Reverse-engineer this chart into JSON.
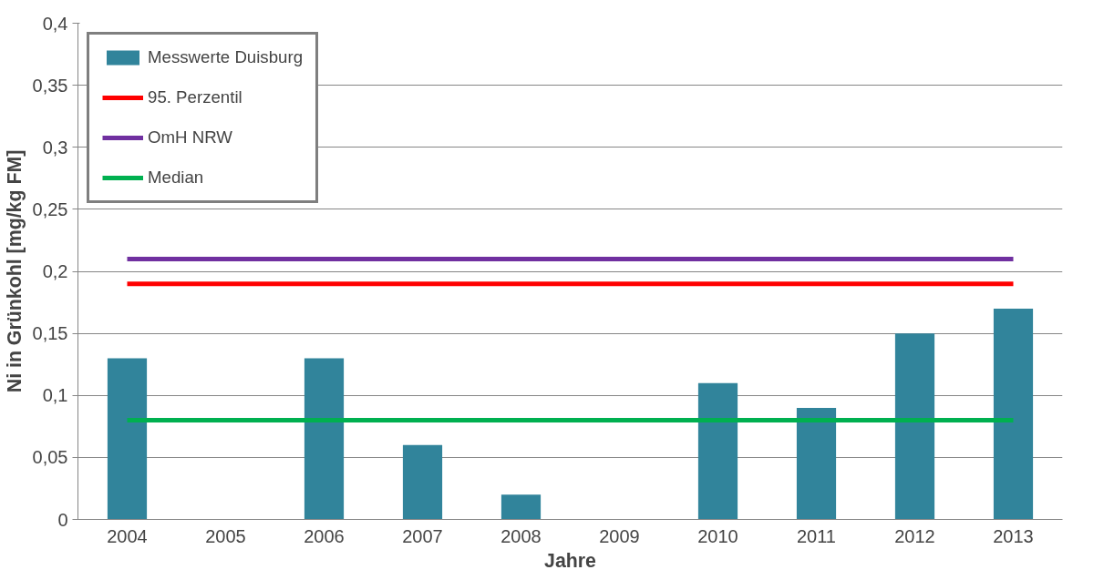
{
  "chart_data": {
    "type": "bar",
    "xlabel": "Jahre",
    "ylabel": "Ni in Grünkohl [mg/kg FM]",
    "categories": [
      "2004",
      "2005",
      "2006",
      "2007",
      "2008",
      "2009",
      "2010",
      "2011",
      "2012",
      "2013"
    ],
    "series": [
      {
        "name": "Messwerte Duisburg",
        "color": "#31849b",
        "values": [
          0.13,
          null,
          0.13,
          0.06,
          0.02,
          null,
          0.11,
          0.09,
          0.15,
          0.17
        ]
      },
      {
        "name": "95. Perzentil",
        "type": "line",
        "color": "#ff0000",
        "values": [
          0.19,
          0.19,
          0.19,
          0.19,
          0.19,
          0.19,
          0.19,
          0.19,
          0.19,
          0.19
        ]
      },
      {
        "name": "OmH NRW",
        "type": "line",
        "color": "#7030a0",
        "values": [
          0.21,
          0.21,
          0.21,
          0.21,
          0.21,
          0.21,
          0.21,
          0.21,
          0.21,
          0.21
        ]
      },
      {
        "name": "Median",
        "type": "line",
        "color": "#00b050",
        "values": [
          0.08,
          0.08,
          0.08,
          0.08,
          0.08,
          0.08,
          0.08,
          0.08,
          0.08,
          0.08
        ]
      }
    ],
    "ylim": [
      0,
      0.4
    ],
    "yticks": [
      0,
      {
        "value": 0.05,
        "label": "0,05"
      },
      {
        "value": 0.1,
        "label": "0,1"
      },
      {
        "value": 0.15,
        "label": "0,15"
      },
      {
        "value": 0.2,
        "label": "0,2"
      },
      {
        "value": 0.25,
        "label": "0,25"
      },
      {
        "value": 0.3,
        "label": "0,3"
      },
      {
        "value": 0.35,
        "label": "0,35"
      },
      {
        "value": 0.4,
        "label": "0,4"
      }
    ],
    "grid": "y",
    "legend": "top left"
  }
}
